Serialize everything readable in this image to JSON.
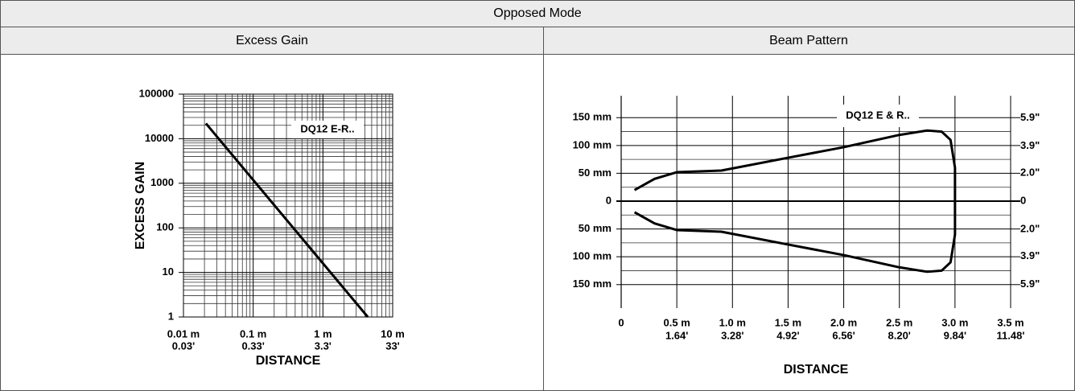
{
  "table": {
    "title": "Opposed Mode",
    "headers": [
      "Excess Gain",
      "Beam Pattern"
    ]
  },
  "chart_data": [
    {
      "type": "line",
      "xlabel": "DISTANCE",
      "ylabel": "EXCESS GAIN",
      "annotation": "DQ12 E-R..",
      "xlog": true,
      "ylog": true,
      "grid": true,
      "xlim": [
        0.01,
        10
      ],
      "ylim": [
        1,
        100000
      ],
      "xticks": [
        {
          "value": 0.01,
          "label": "0.01 m"
        },
        {
          "value": 0.1,
          "label": "0.1 m"
        },
        {
          "value": 1,
          "label": "1 m"
        },
        {
          "value": 10,
          "label": "10 m"
        }
      ],
      "xticks_secondary": [
        {
          "value": 0.01,
          "label": "0.03'"
        },
        {
          "value": 0.1,
          "label": "0.33'"
        },
        {
          "value": 1,
          "label": "3.3'"
        },
        {
          "value": 10,
          "label": "33'"
        }
      ],
      "yticks": [
        1,
        10,
        100,
        1000,
        10000,
        100000
      ],
      "series": [
        {
          "color": "#000000",
          "x": [
            0.021,
            4.4
          ],
          "values": [
            22000,
            1
          ]
        }
      ]
    },
    {
      "type": "line",
      "xlabel": "DISTANCE",
      "annotation": "DQ12 E & R..",
      "grid": true,
      "xlim": [
        0,
        3.5
      ],
      "ylim": [
        -175,
        175
      ],
      "y2lim": [
        -6.89,
        6.89
      ],
      "xticks": [
        0,
        {
          "value": 0.5,
          "label": "0.5 m"
        },
        {
          "value": 1.0,
          "label": "1.0 m"
        },
        {
          "value": 1.5,
          "label": "1.5 m"
        },
        {
          "value": 2.0,
          "label": "2.0 m"
        },
        {
          "value": 2.5,
          "label": "2.5 m"
        },
        {
          "value": 3.0,
          "label": "3.0 m"
        },
        {
          "value": 3.5,
          "label": "3.5 m"
        }
      ],
      "xticks_secondary": [
        {
          "value": 0.5,
          "label": "1.64'"
        },
        {
          "value": 1.0,
          "label": "3.28'"
        },
        {
          "value": 1.5,
          "label": "4.92'"
        },
        {
          "value": 2.0,
          "label": "6.56'"
        },
        {
          "value": 2.5,
          "label": "8.20'"
        },
        {
          "value": 3.0,
          "label": "9.84'"
        },
        {
          "value": 3.5,
          "label": "11.48'"
        }
      ],
      "yticks": [
        {
          "value": 150,
          "label": "150 mm"
        },
        {
          "value": 100,
          "label": "100 mm"
        },
        {
          "value": 50,
          "label": "50 mm"
        },
        0,
        {
          "value": -50,
          "label": "50 mm"
        },
        {
          "value": -100,
          "label": "100 mm"
        },
        {
          "value": -150,
          "label": "150 mm"
        }
      ],
      "y2ticks": [
        {
          "value": 5.9,
          "label": "5.9\""
        },
        {
          "value": 3.9,
          "label": "3.9\""
        },
        {
          "value": 2.0,
          "label": "2.0\""
        },
        0,
        {
          "value": -2.0,
          "label": "2.0\""
        },
        {
          "value": -3.9,
          "label": "3.9\""
        },
        {
          "value": -5.9,
          "label": "5.9\""
        }
      ],
      "series": [
        {
          "color": "#000000",
          "x": [
            0.12,
            0.3,
            0.5,
            0.9,
            1.5,
            2.0,
            2.5,
            2.75,
            2.88,
            2.96,
            3.0,
            3.0
          ],
          "values": [
            20,
            40,
            52,
            55,
            78,
            97,
            119,
            127,
            125,
            110,
            60,
            0
          ]
        },
        {
          "color": "#000000",
          "x": [
            0.12,
            0.3,
            0.5,
            0.9,
            1.5,
            2.0,
            2.5,
            2.75,
            2.88,
            2.96,
            3.0,
            3.0
          ],
          "values": [
            -20,
            -40,
            -52,
            -55,
            -78,
            -97,
            -119,
            -127,
            -125,
            -110,
            -60,
            0
          ]
        }
      ]
    }
  ]
}
